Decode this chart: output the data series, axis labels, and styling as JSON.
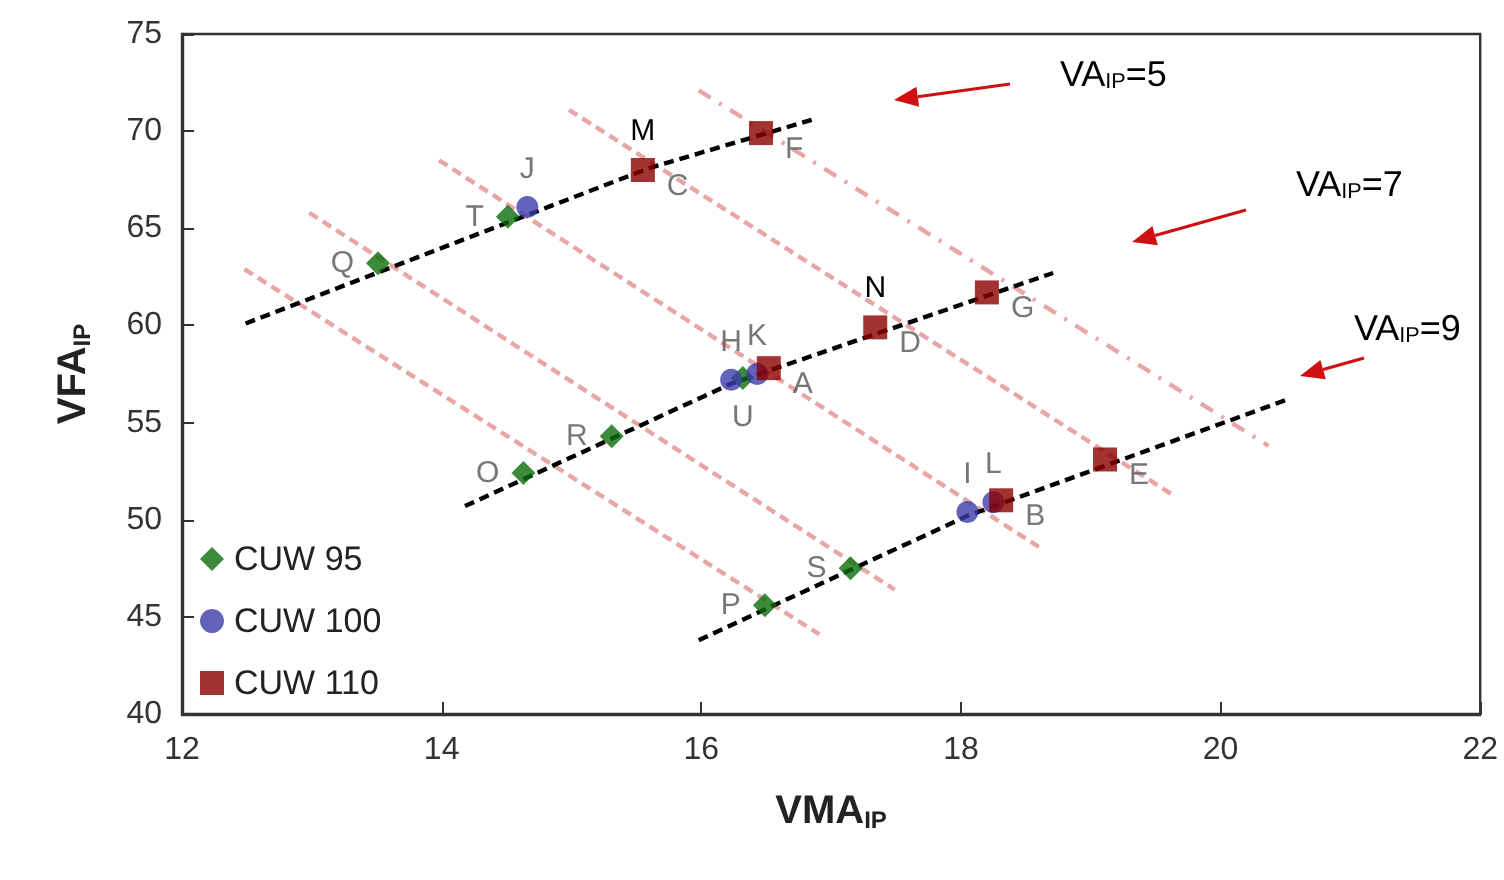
{
  "chart_data": {
    "type": "scatter",
    "xlabel": "VMA$_{IP}$",
    "ylabel": "VFA$_{IP}$",
    "xlim": [
      12,
      22
    ],
    "xticks": [
      12,
      14,
      16,
      18,
      20,
      22
    ],
    "ylim": [
      40,
      75
    ],
    "yticks": [
      40,
      45,
      50,
      55,
      60,
      65,
      70,
      75
    ],
    "grid": false,
    "legend": "bottom left",
    "annotations": [
      "VA$_{IP}$=5",
      "VA$_{IP}$=7",
      "VA$_{IP}$=9",
      {
        "text": "M",
        "x": 15.55,
        "y": 68.0
      },
      {
        "text": "N",
        "x": 17.34,
        "y": 59.9
      }
    ],
    "series": [
      {
        "type": "line",
        "color": "#e8a6a6",
        "line_style": "dashed",
        "marker": "none",
        "x": [
          12.48,
          16.91
        ],
        "values": [
          62.9,
          44.1
        ]
      },
      {
        "type": "line",
        "color": "#e8a6a6",
        "line_style": "dashed",
        "marker": "none",
        "x": [
          12.98,
          17.49
        ],
        "values": [
          65.8,
          46.4
        ]
      },
      {
        "type": "line",
        "color": "#e8a6a6",
        "line_style": "dashed",
        "marker": "none",
        "x": [
          13.98,
          18.6
        ],
        "values": [
          68.5,
          48.6
        ]
      },
      {
        "type": "line",
        "color": "#e8a6a6",
        "line_style": "dashed",
        "marker": "none",
        "x": [
          14.98,
          19.65
        ],
        "values": [
          71.1,
          51.2
        ]
      },
      {
        "type": "line",
        "color": "#e8a6a6",
        "line_style": "dotted",
        "marker": "none",
        "x": [
          15.98,
          20.37
        ],
        "values": [
          72.1,
          53.8
        ]
      },
      {
        "type": "line",
        "color": "#000000",
        "line_style": "dashed",
        "marker": "none",
        "x": [
          12.49,
          15.6,
          16.86
        ],
        "values": [
          60.1,
          68.1,
          70.6
        ]
      },
      {
        "type": "line",
        "color": "#000000",
        "line_style": "dashed",
        "marker": "none",
        "x": [
          14.18,
          16.23,
          18.71
        ],
        "values": [
          50.7,
          57.0,
          62.7
        ]
      },
      {
        "type": "line",
        "color": "#000000",
        "line_style": "dashed",
        "marker": "none",
        "x": [
          15.98,
          18.05,
          20.52
        ],
        "values": [
          43.8,
          50.2,
          56.2
        ]
      },
      {
        "name": "CUW 95",
        "color": "#0b6e0b",
        "marker": "diamond",
        "x": [
          14.63,
          16.49,
          13.51,
          15.31,
          17.15,
          14.51,
          16.32
        ],
        "values": [
          52.4,
          45.6,
          63.2,
          54.3,
          47.5,
          65.6,
          57.3
        ],
        "value_labels": [
          "O",
          "P",
          "Q",
          "R",
          "S",
          "T",
          "U"
        ]
      },
      {
        "name": "CUW 100",
        "color": "#3c3caa",
        "marker": "circle",
        "x": [
          16.23,
          18.05,
          14.66,
          16.43,
          18.25
        ],
        "values": [
          57.2,
          50.4,
          66.1,
          57.5,
          50.9
        ],
        "value_labels": [
          "H",
          "I",
          "J",
          "K",
          "L"
        ]
      },
      {
        "name": "CUW 110",
        "color": "#8b0000",
        "marker": "square",
        "x": [
          16.52,
          18.31,
          15.55,
          17.34,
          19.11,
          16.46,
          18.2
        ],
        "values": [
          57.8,
          51.0,
          68.0,
          59.9,
          53.1,
          69.9,
          61.7
        ],
        "value_labels": [
          "A",
          "B",
          "C",
          "D",
          "E",
          "F",
          "G"
        ]
      }
    ]
  }
}
